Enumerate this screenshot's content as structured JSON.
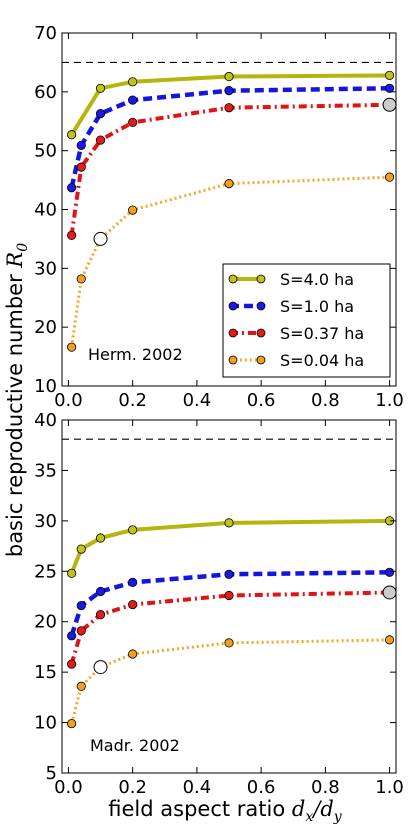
{
  "ylabel_text": "basic reproductive number ",
  "ylabel_math": "R",
  "ylabel_sub": "0",
  "xlabel_text": "field aspect ratio ",
  "xlabel_math_dx": "d",
  "xlabel_math_dx_sub": "x",
  "xlabel_math_slash": "/",
  "xlabel_math_dy": "d",
  "xlabel_math_dy_sub": "y",
  "colors": {
    "s40": "#b5b50d",
    "s10": "#1515dd",
    "s037": "#e01414",
    "s004": "#f5a623",
    "marker_s40": "#c2c21a",
    "marker_s10": "#1a1ae6",
    "marker_s037": "#e61a1a",
    "marker_s004": "#f0a020"
  },
  "chart_data": [
    {
      "type": "line",
      "annotation": "Herm. 2002",
      "xlim": [
        -0.02,
        1.02
      ],
      "ylim": [
        10,
        70
      ],
      "xticks": [
        "0.0",
        "0.2",
        "0.4",
        "0.6",
        "0.8",
        "1.0"
      ],
      "xtick_values": [
        0,
        0.2,
        0.4,
        0.6,
        0.8,
        1.0
      ],
      "yticks": [
        "10",
        "20",
        "30",
        "40",
        "50",
        "60",
        "70"
      ],
      "ytick_values": [
        10,
        20,
        30,
        40,
        50,
        60,
        70
      ],
      "hline": 65,
      "legend_position": "lower-right",
      "x": [
        0.01,
        0.04,
        0.1,
        0.2,
        0.5,
        1.0
      ],
      "series": [
        {
          "name": "S=4.0 ha",
          "style": "solid",
          "values": [
            52.7,
            null,
            60.6,
            61.7,
            62.6,
            62.8
          ]
        },
        {
          "name": "S=1.0 ha",
          "style": "dashed",
          "values": [
            43.7,
            50.9,
            56.3,
            58.6,
            60.2,
            60.6
          ]
        },
        {
          "name": "S=0.37 ha",
          "style": "dashdot",
          "values": [
            35.6,
            47.2,
            51.8,
            54.8,
            57.3,
            57.8
          ]
        },
        {
          "name": "S=0.04 ha",
          "style": "dotted",
          "values": [
            16.6,
            28.2,
            35.0,
            39.9,
            44.4,
            45.5
          ]
        }
      ],
      "highlight_points": [
        {
          "x": 0.1,
          "y": 35.0
        },
        {
          "x": 1.0,
          "y": 57.8
        }
      ]
    },
    {
      "type": "line",
      "annotation": "Madr. 2002",
      "xlim": [
        -0.02,
        1.02
      ],
      "ylim": [
        5,
        40
      ],
      "xticks": [
        "0.0",
        "0.2",
        "0.4",
        "0.6",
        "0.8",
        "1.0"
      ],
      "xtick_values": [
        0,
        0.2,
        0.4,
        0.6,
        0.8,
        1.0
      ],
      "yticks": [
        "5",
        "10",
        "15",
        "20",
        "25",
        "30",
        "35",
        "40"
      ],
      "ytick_values": [
        5,
        10,
        15,
        20,
        25,
        30,
        35,
        40
      ],
      "hline": 38.1,
      "x": [
        0.01,
        0.04,
        0.1,
        0.2,
        0.5,
        1.0
      ],
      "series": [
        {
          "name": "S=4.0 ha",
          "style": "solid",
          "values": [
            24.8,
            27.2,
            28.3,
            29.1,
            29.8,
            30.0
          ]
        },
        {
          "name": "S=1.0 ha",
          "style": "dashed",
          "values": [
            18.6,
            21.6,
            23.0,
            23.9,
            24.7,
            24.9
          ]
        },
        {
          "name": "S=0.37 ha",
          "style": "dashdot",
          "values": [
            15.8,
            19.1,
            20.7,
            21.7,
            22.6,
            22.9
          ]
        },
        {
          "name": "S=0.04 ha",
          "style": "dotted",
          "values": [
            9.9,
            13.6,
            15.5,
            16.8,
            17.9,
            18.2
          ]
        }
      ],
      "highlight_points": [
        {
          "x": 0.1,
          "y": 15.5
        },
        {
          "x": 1.0,
          "y": 22.9
        }
      ]
    }
  ]
}
